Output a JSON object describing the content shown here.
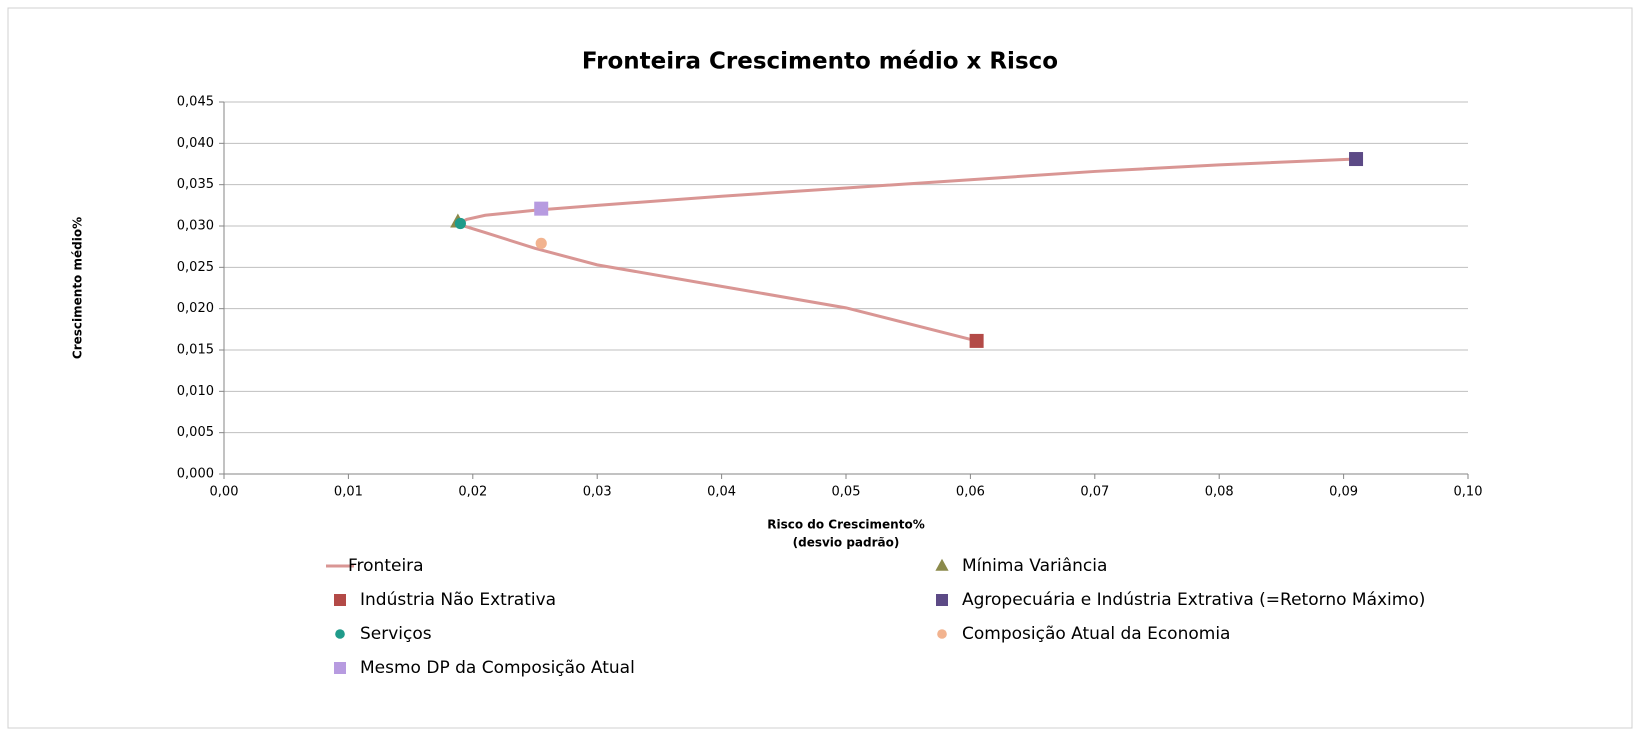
{
  "chart_data": {
    "type": "scatter",
    "title": "Fronteira Crescimento médio x Risco",
    "xlabel": [
      "Risco do Crescimento%",
      "(desvio padrão)"
    ],
    "ylabel": "Crescimento médio%",
    "xlim": [
      0,
      0.1
    ],
    "ylim": [
      0,
      0.045
    ],
    "grid": true,
    "xticks": [
      {
        "value": 0,
        "label": "0,00"
      },
      {
        "value": 0.01,
        "label": "0,01"
      },
      {
        "value": 0.02,
        "label": "0,02"
      },
      {
        "value": 0.03,
        "label": "0,03"
      },
      {
        "value": 0.04,
        "label": "0,04"
      },
      {
        "value": 0.05,
        "label": "0,05"
      },
      {
        "value": 0.06,
        "label": "0,06"
      },
      {
        "value": 0.07,
        "label": "0,07"
      },
      {
        "value": 0.08,
        "label": "0,08"
      },
      {
        "value": 0.09,
        "label": "0,09"
      },
      {
        "value": 0.1,
        "label": "0,10"
      }
    ],
    "yticks": [
      {
        "value": 0,
        "label": "0,000"
      },
      {
        "value": 0.005,
        "label": "0,005"
      },
      {
        "value": 0.01,
        "label": "0,010"
      },
      {
        "value": 0.015,
        "label": "0,015"
      },
      {
        "value": 0.02,
        "label": "0,020"
      },
      {
        "value": 0.025,
        "label": "0,025"
      },
      {
        "value": 0.03,
        "label": "0,030"
      },
      {
        "value": 0.035,
        "label": "0,035"
      },
      {
        "value": 0.04,
        "label": "0,040"
      },
      {
        "value": 0.045,
        "label": "0,045"
      }
    ],
    "series": [
      {
        "name": "Fronteira",
        "color": "#d99694",
        "marker": "line",
        "x": [
          0.0605,
          0.05,
          0.04,
          0.03,
          0.025,
          0.021,
          0.0195,
          0.0189,
          0.0195,
          0.021,
          0.025,
          0.03,
          0.04,
          0.05,
          0.06,
          0.07,
          0.08,
          0.091
        ],
        "values": [
          0.0161,
          0.0201,
          0.0227,
          0.0253,
          0.0273,
          0.0292,
          0.0299,
          0.0303,
          0.0308,
          0.0313,
          0.0319,
          0.0325,
          0.0336,
          0.0346,
          0.0356,
          0.0366,
          0.0374,
          0.0381
        ]
      },
      {
        "name": "Mínima Variância",
        "color": "#8b8a4b",
        "marker": "triangle",
        "x": [
          0.0188
        ],
        "values": [
          0.0305
        ]
      },
      {
        "name": "Indústria Não Extrativa",
        "color": "#b34a47",
        "marker": "square",
        "x": [
          0.0605
        ],
        "values": [
          0.0161
        ]
      },
      {
        "name": "Agropecuária e Indústria Extrativa (=Retorno Máximo)",
        "color": "#5c4a86",
        "marker": "square",
        "x": [
          0.091
        ],
        "values": [
          0.0381
        ]
      },
      {
        "name": "Serviços",
        "color": "#1f9b8a",
        "marker": "circle",
        "x": [
          0.019
        ],
        "values": [
          0.0303
        ]
      },
      {
        "name": "Composição Atual da Economia",
        "color": "#f2b38f",
        "marker": "circle",
        "x": [
          0.0255
        ],
        "values": [
          0.0279
        ]
      },
      {
        "name": "Mesmo DP da Composição Atual",
        "color": "#b79be0",
        "marker": "square",
        "x": [
          0.0255
        ],
        "values": [
          0.0321
        ]
      }
    ]
  }
}
